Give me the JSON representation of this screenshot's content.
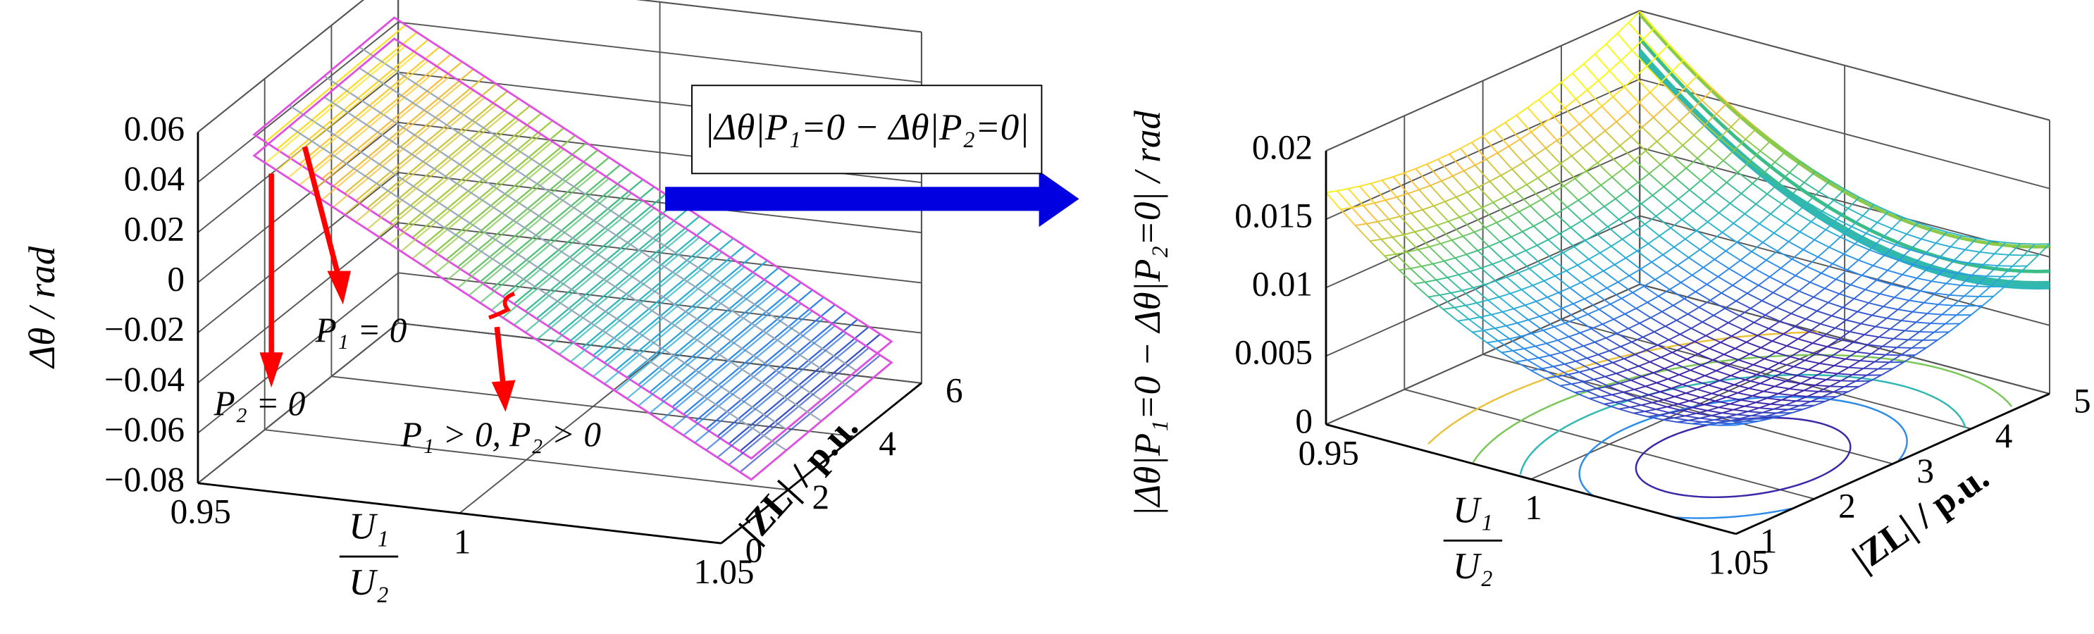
{
  "chart_data": [
    {
      "type": "surface",
      "zlabel": "Δθ / rad",
      "xlabel": {
        "numerator": "U₁",
        "denominator": "U₂"
      },
      "ylabel": "|ZL| / p.u.",
      "xlim": [
        0.95,
        1.05
      ],
      "xticks": [
        0.95,
        1,
        1.05
      ],
      "ylim": [
        0,
        6
      ],
      "yticks": [
        0,
        2,
        4,
        6
      ],
      "zlim": [
        -0.08,
        0.06
      ],
      "zticks": [
        {
          "value": -0.08,
          "label": "−0.08"
        },
        {
          "value": -0.06,
          "label": "−0.06"
        },
        {
          "value": -0.04,
          "label": "−0.04"
        },
        {
          "value": -0.02,
          "label": "−0.02"
        },
        0,
        0.02,
        0.04,
        0.06
      ],
      "grid": true,
      "annotations": [
        "P₁ = 0",
        "P₂ = 0",
        "P₁ > 0, P₂ > 0"
      ]
    },
    {
      "type": "surface",
      "zlabel": "|Δθ|P₁=0 − Δθ|P₂=0| / rad",
      "xlabel": {
        "numerator": "U₁",
        "denominator": "U₂"
      },
      "ylabel": "|ZL| / p.u.",
      "xlim": [
        0.95,
        1.05
      ],
      "xticks": [
        0.95,
        1,
        1.05
      ],
      "ylim": [
        1,
        5
      ],
      "yticks": [
        1,
        2,
        3,
        4,
        5
      ],
      "zlim": [
        0,
        0.02
      ],
      "zticks": [
        0,
        0.005,
        0.01,
        0.015,
        0.02
      ],
      "grid": true
    }
  ],
  "arrow_label": "|Δθ|P₁=0 − Δθ|P₂=0|"
}
